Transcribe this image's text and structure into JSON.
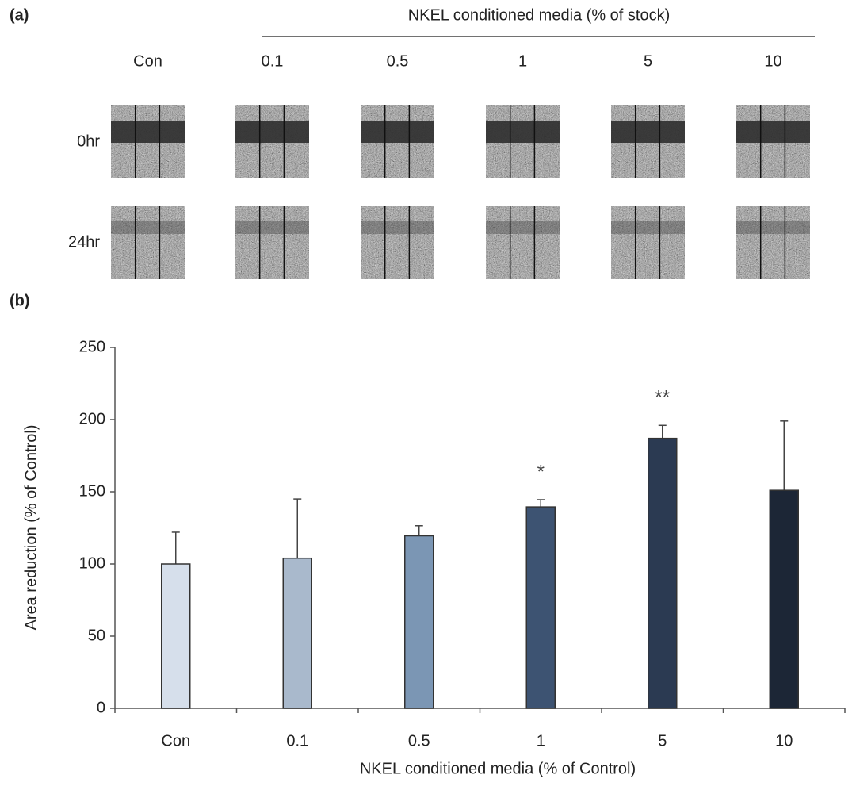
{
  "panel_a": {
    "label": "(a)",
    "header": "NKEL conditioned media (% of stock)",
    "columns": [
      "Con",
      "0.1",
      "0.5",
      "1",
      "5",
      "10"
    ],
    "rows": [
      "0hr",
      "24hr"
    ]
  },
  "chart_data": {
    "type": "bar",
    "label": "(b)",
    "x_label": "NKEL conditioned media (% of Control)",
    "y_label": "Area reduction (% of Control)",
    "categories": [
      "Con",
      "0.1",
      "0.5",
      "1",
      "5",
      "10"
    ],
    "values": [
      100,
      104,
      119.5,
      139.5,
      187,
      151
    ],
    "errors": [
      22,
      41,
      7,
      5,
      9,
      48
    ],
    "colors": [
      "#d6dfeb",
      "#a9b9cc",
      "#7b96b4",
      "#3d5372",
      "#2b3a52",
      "#1c2636"
    ],
    "annotations": [
      {
        "text": "*",
        "category": "1"
      },
      {
        "text": "**",
        "category": "5"
      }
    ],
    "ylim": [
      0,
      250
    ],
    "yticks": [
      0,
      50,
      100,
      150,
      200,
      250
    ]
  }
}
